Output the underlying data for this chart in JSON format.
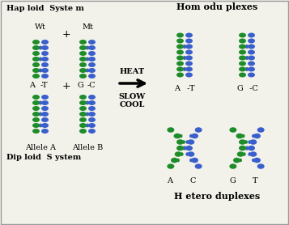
{
  "bg_color": "#f2f2ea",
  "green": "#1e8c2a",
  "blue": "#3a5fcd",
  "text_color": "#000000",
  "figsize": [
    3.57,
    2.78
  ],
  "dpi": 100,
  "haploid_label": "Hap loid  Syste m",
  "diploid_label": "Dip loid  S ystem",
  "wt_label": "Wt",
  "mt_label": "Mt",
  "heat_label": "HEAT",
  "slow_cool_label": "SLOW\nCOOL",
  "homoduplexes_label": "Hom odu plexes",
  "heteroduplexes_label": "H etero duplexes",
  "allele_a_label": "Allele A",
  "allele_b_label": "Allele B",
  "plus": "+"
}
